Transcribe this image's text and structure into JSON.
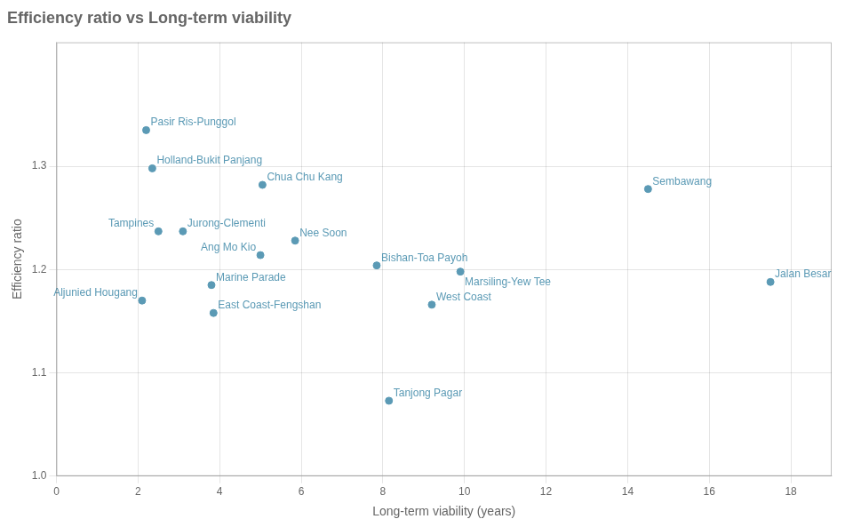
{
  "chart_data": {
    "type": "scatter",
    "title": "Efficiency ratio vs Long-term viability",
    "xlabel": "Long-term viability (years)",
    "ylabel": "Efficiency ratio",
    "x": [
      2.2,
      2.35,
      5.05,
      2.5,
      3.1,
      5.85,
      5.0,
      3.8,
      7.85,
      9.9,
      2.1,
      9.2,
      3.85,
      14.5,
      8.15,
      17.5
    ],
    "values": [
      1.335,
      1.298,
      1.282,
      1.237,
      1.237,
      1.228,
      1.214,
      1.185,
      1.204,
      1.198,
      1.17,
      1.166,
      1.158,
      1.278,
      1.073,
      1.188
    ],
    "point_labels": [
      "Pasir Ris-Punggol",
      "Holland-Bukit Panjang",
      "Chua Chu Kang",
      "Tampines",
      "Jurong-Clementi",
      "Nee Soon",
      "Ang Mo Kio",
      "Marine Parade",
      "Bishan-Toa Payoh",
      "Marsiling-Yew Tee",
      "Aljunied Hougang",
      "West Coast",
      "East Coast-Fengshan",
      "Sembawang",
      "Tanjong Pagar",
      "Jalan Besar"
    ],
    "color": "#5b9ab5",
    "xlim": [
      0,
      19
    ],
    "ylim": [
      1.0,
      1.42
    ],
    "xticks": [
      0,
      2,
      4,
      6,
      8,
      10,
      12,
      14,
      16,
      18
    ],
    "yticks": [
      {
        "value": 1.0,
        "label": "1.0"
      },
      1.1,
      1.2,
      1.3
    ],
    "grid": true
  }
}
